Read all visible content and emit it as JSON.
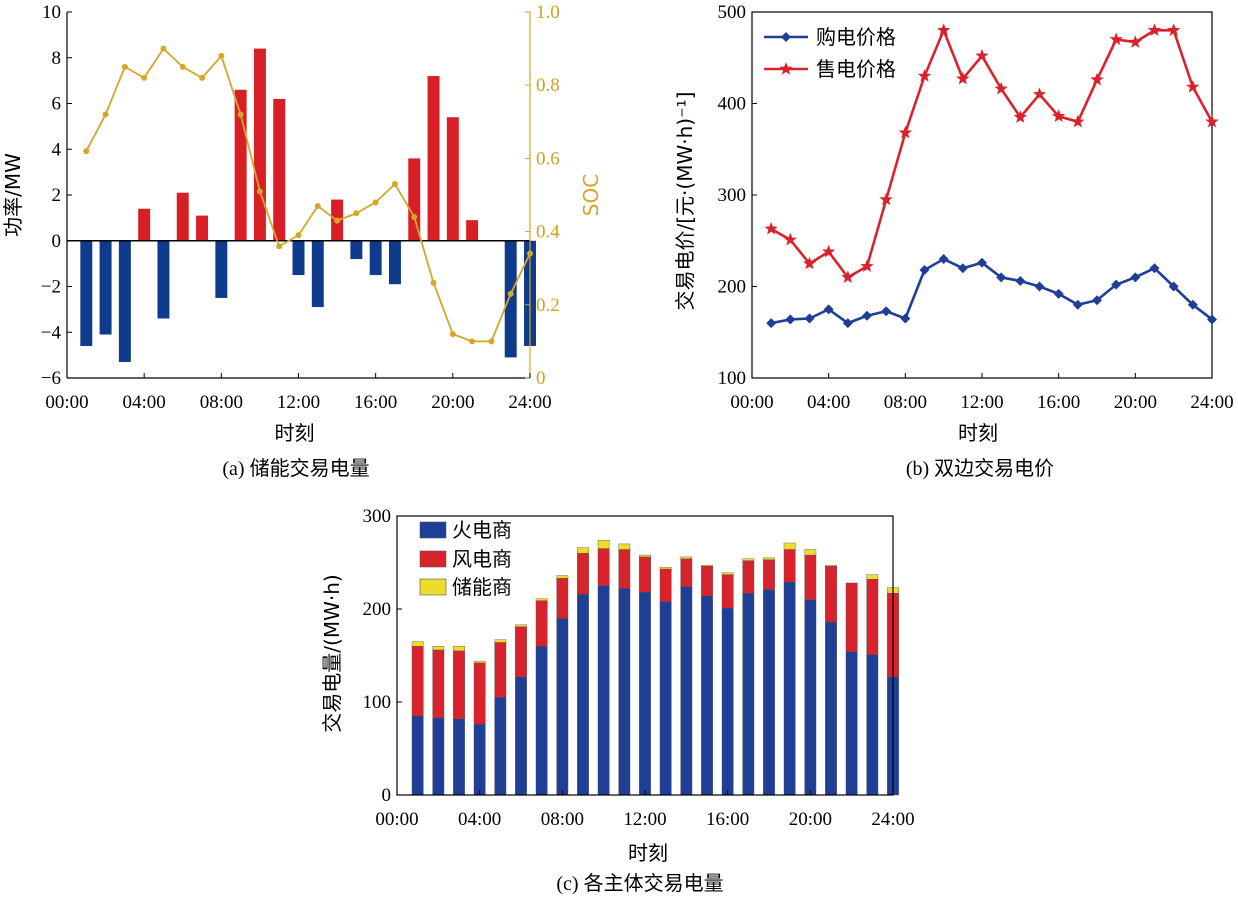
{
  "colors": {
    "charge_red": "#d91f26",
    "discharge_blue": "#0f3b8c",
    "soc_gold": "#d4a62a",
    "buy_blue": "#1f3f96",
    "sell_red": "#d9232c",
    "thermal_blue": "#1f3f96",
    "wind_red": "#d9232c",
    "storage_yellow": "#eddc2a"
  },
  "chart_data": [
    {
      "type": "bar",
      "caption": "(a)  储能交易电量",
      "xlabel": "时刻",
      "ylabel": "功率/MW",
      "y2label": "SOC",
      "xticks": [
        "00:00",
        "04:00",
        "08:00",
        "12:00",
        "16:00",
        "20:00",
        "24:00"
      ],
      "xlim": [
        0,
        24
      ],
      "ylim": [
        -6,
        10
      ],
      "yticks": [
        -6,
        -4,
        -2,
        0,
        2,
        4,
        6,
        8,
        10
      ],
      "y2lim": [
        0,
        1
      ],
      "y2ticks": [
        "0",
        "0.2",
        "0.4",
        "0.6",
        "0.8",
        "1.0"
      ],
      "hours": [
        1,
        2,
        3,
        4,
        5,
        6,
        7,
        8,
        9,
        10,
        11,
        12,
        13,
        14,
        15,
        16,
        17,
        18,
        19,
        20,
        21,
        22,
        23,
        24
      ],
      "power": [
        -4.6,
        -4.1,
        -5.3,
        1.4,
        -3.4,
        2.1,
        1.1,
        -2.5,
        6.6,
        8.4,
        6.2,
        -1.5,
        -2.9,
        1.8,
        -0.8,
        -1.5,
        -1.9,
        3.6,
        7.2,
        5.4,
        0.9,
        0,
        -5.1,
        -4.6
      ],
      "soc": [
        0.62,
        0.72,
        0.85,
        0.82,
        0.9,
        0.85,
        0.82,
        0.88,
        0.72,
        0.51,
        0.36,
        0.39,
        0.47,
        0.43,
        0.45,
        0.48,
        0.53,
        0.44,
        0.26,
        0.12,
        0.1,
        0.1,
        0.23,
        0.34
      ]
    },
    {
      "type": "line",
      "caption": "(b)  双边交易电价",
      "xlabel": "时刻",
      "ylabel": "交易电价/[元·(MW·h)⁻¹]",
      "xticks": [
        "00:00",
        "04:00",
        "08:00",
        "12:00",
        "16:00",
        "20:00",
        "24:00"
      ],
      "xlim": [
        0,
        24
      ],
      "ylim": [
        100,
        500
      ],
      "yticks": [
        100,
        200,
        300,
        400,
        500
      ],
      "hours": [
        1,
        2,
        3,
        4,
        5,
        6,
        7,
        8,
        9,
        10,
        11,
        12,
        13,
        14,
        15,
        16,
        17,
        18,
        19,
        20,
        21,
        22,
        23,
        24
      ],
      "series": [
        {
          "name": "购电价格",
          "values": [
            160,
            164,
            165,
            175,
            160,
            168,
            173,
            165,
            218,
            230,
            220,
            226,
            210,
            206,
            200,
            192,
            180,
            185,
            202,
            210,
            220,
            200,
            180,
            164
          ]
        },
        {
          "name": "售电价格",
          "values": [
            263,
            251,
            225,
            238,
            210,
            222,
            295,
            368,
            430,
            480,
            427,
            452,
            416,
            385,
            410,
            386,
            380,
            426,
            470,
            467,
            480,
            480,
            418,
            380
          ]
        }
      ],
      "legend": "top-left"
    },
    {
      "type": "bar",
      "stacked": true,
      "caption": "(c)  各主体交易电量",
      "xlabel": "时刻",
      "ylabel": "交易电量/(MW·h)",
      "xticks": [
        "00:00",
        "04:00",
        "08:00",
        "12:00",
        "16:00",
        "20:00",
        "24:00"
      ],
      "xlim": [
        0,
        24
      ],
      "ylim": [
        0,
        300
      ],
      "yticks": [
        0,
        100,
        200,
        300
      ],
      "hours": [
        1,
        2,
        3,
        4,
        5,
        6,
        7,
        8,
        9,
        10,
        11,
        12,
        13,
        14,
        15,
        16,
        17,
        18,
        19,
        20,
        21,
        22,
        23,
        24
      ],
      "series": [
        {
          "name": "火电商",
          "values": [
            85,
            83,
            82,
            76,
            105,
            127,
            160,
            190,
            216,
            225,
            222,
            218,
            208,
            224,
            214,
            201,
            217,
            221,
            229,
            210,
            186,
            154,
            151,
            127
          ]
        },
        {
          "name": "风电商",
          "values": [
            75,
            73,
            73,
            66,
            59,
            54,
            49,
            43,
            44,
            40,
            42,
            38,
            35,
            30,
            32,
            36,
            35,
            32,
            35,
            48,
            60,
            74,
            81,
            90
          ]
        },
        {
          "name": "储能商",
          "values": [
            5,
            4,
            5,
            2,
            3,
            2,
            2,
            3,
            6,
            9,
            6,
            2,
            2,
            2,
            1,
            2,
            2,
            2,
            7,
            6,
            1,
            0,
            5,
            6
          ]
        }
      ],
      "legend": "top-left"
    }
  ]
}
